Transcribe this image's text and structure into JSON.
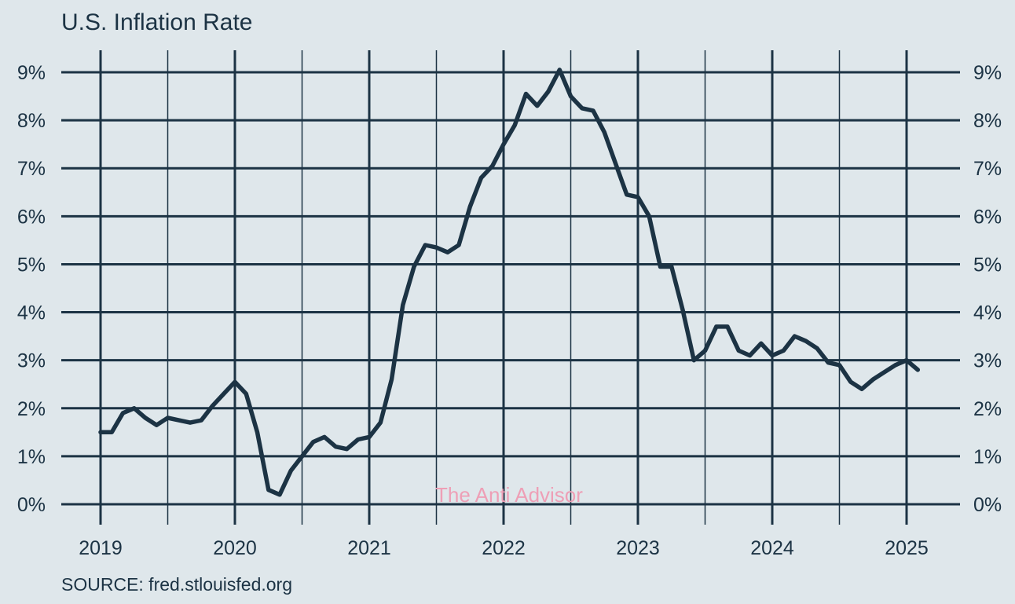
{
  "colors": {
    "background": "#dfe7eb",
    "line": "#1c3344",
    "watermark": "#ee9fb6"
  },
  "chart_data": {
    "type": "line",
    "title": "U.S. Inflation Rate",
    "source": "SOURCE: fred.stlouisfed.org",
    "watermark": "The Anti Advisor",
    "xlabel": "",
    "ylabel": "",
    "x_ticks": [
      "2019",
      "2020",
      "2021",
      "2022",
      "2023",
      "2024",
      "2025"
    ],
    "y_ticks": [
      "0%",
      "1%",
      "2%",
      "3%",
      "4%",
      "5%",
      "6%",
      "7%",
      "8%",
      "9%"
    ],
    "xlim": [
      "2019-01",
      "2025-01"
    ],
    "ylim": [
      0,
      9
    ],
    "y_axis_sides": [
      "left",
      "right"
    ],
    "grid": true,
    "series": [
      {
        "x": [
          "2019-01",
          "2019-02",
          "2019-03",
          "2019-04",
          "2019-05",
          "2019-06",
          "2019-07",
          "2019-08",
          "2019-09",
          "2019-10",
          "2019-11",
          "2019-12",
          "2020-01",
          "2020-02",
          "2020-03",
          "2020-04",
          "2020-05",
          "2020-06",
          "2020-07",
          "2020-08",
          "2020-09",
          "2020-10",
          "2020-11",
          "2020-12",
          "2021-01",
          "2021-02",
          "2021-03",
          "2021-04",
          "2021-05",
          "2021-06",
          "2021-07",
          "2021-08",
          "2021-09",
          "2021-10",
          "2021-11",
          "2021-12",
          "2022-01",
          "2022-02",
          "2022-03",
          "2022-04",
          "2022-05",
          "2022-06",
          "2022-07",
          "2022-08",
          "2022-09",
          "2022-10",
          "2022-11",
          "2022-12",
          "2023-01",
          "2023-02",
          "2023-03",
          "2023-04",
          "2023-05",
          "2023-06",
          "2023-07",
          "2023-08",
          "2023-09",
          "2023-10",
          "2023-11",
          "2023-12",
          "2024-01",
          "2024-02",
          "2024-03",
          "2024-04",
          "2024-05",
          "2024-06",
          "2024-07",
          "2024-08",
          "2024-09",
          "2024-10",
          "2024-11",
          "2024-12",
          "2025-01",
          "2025-02"
        ],
        "y": [
          1.5,
          1.5,
          1.9,
          2.0,
          1.8,
          1.65,
          1.8,
          1.75,
          1.7,
          1.75,
          2.05,
          2.3,
          2.55,
          2.3,
          1.5,
          0.3,
          0.2,
          0.7,
          1.0,
          1.3,
          1.4,
          1.2,
          1.15,
          1.35,
          1.4,
          1.7,
          2.6,
          4.15,
          4.95,
          5.4,
          5.35,
          5.25,
          5.4,
          6.2,
          6.8,
          7.05,
          7.5,
          7.9,
          8.55,
          8.3,
          8.6,
          9.05,
          8.5,
          8.25,
          8.2,
          7.75,
          7.1,
          6.45,
          6.4,
          6.0,
          4.95,
          4.95,
          4.05,
          3.0,
          3.2,
          3.7,
          3.7,
          3.2,
          3.1,
          3.35,
          3.1,
          3.2,
          3.5,
          3.4,
          3.25,
          2.95,
          2.9,
          2.55,
          2.4,
          2.6,
          2.75,
          2.9,
          3.0,
          2.8
        ]
      }
    ]
  }
}
